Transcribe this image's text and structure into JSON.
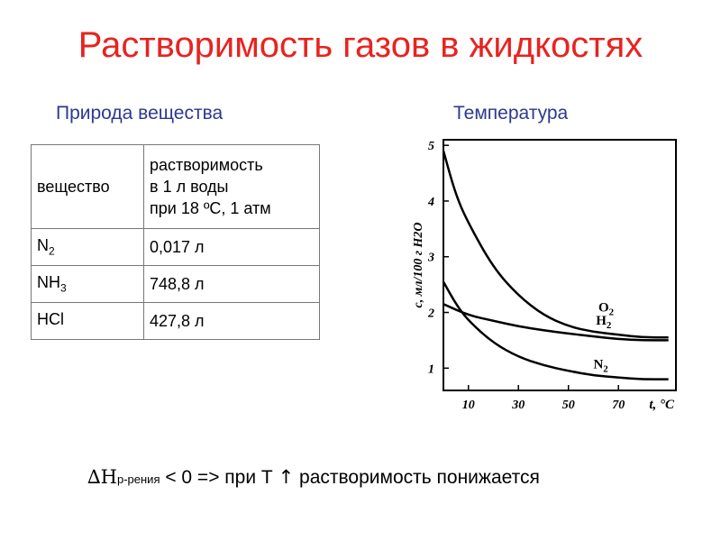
{
  "title": "Растворимость газов в жидкостях",
  "left_heading": "Природа вещества",
  "right_heading": "Температура",
  "table": {
    "header_substance": "вещество",
    "header_solubility_1": "растворимость",
    "header_solubility_2": "в 1 л воды",
    "header_solubility_3": "при 18 ºС, 1 атм",
    "rows": [
      {
        "base": "N",
        "sub": "2",
        "value": "0,017 л"
      },
      {
        "base": "NH",
        "sub": "3",
        "value": "748,8 л"
      },
      {
        "base": "HCl",
        "sub": "",
        "value": "427,8 л"
      }
    ]
  },
  "chart_data": {
    "type": "line",
    "ylabel": "c, мл/100 г H2O",
    "xlabel": "t, °C",
    "x_ticks": [
      "10",
      "30",
      "50",
      "70"
    ],
    "y_ticks": [
      "1",
      "2",
      "3",
      "4",
      "5"
    ],
    "xlim": [
      0,
      93
    ],
    "ylim": [
      0.6,
      5.1
    ],
    "grid": false,
    "series": [
      {
        "name": "O2",
        "x": [
          0,
          5,
          10,
          20,
          30,
          40,
          50,
          60,
          70,
          80,
          90
        ],
        "y": [
          4.9,
          4.1,
          3.6,
          2.8,
          2.3,
          1.95,
          1.75,
          1.65,
          1.6,
          1.55,
          1.55
        ]
      },
      {
        "name": "H2",
        "x": [
          0,
          10,
          20,
          30,
          40,
          50,
          60,
          70,
          80,
          90
        ],
        "y": [
          2.15,
          1.95,
          1.85,
          1.75,
          1.68,
          1.62,
          1.57,
          1.52,
          1.5,
          1.5
        ]
      },
      {
        "name": "N2",
        "x": [
          0,
          5,
          10,
          20,
          30,
          40,
          50,
          60,
          70,
          80,
          90
        ],
        "y": [
          2.55,
          2.15,
          1.85,
          1.45,
          1.2,
          1.05,
          0.95,
          0.87,
          0.83,
          0.8,
          0.8
        ]
      }
    ],
    "series_labels": [
      "O2",
      "H2",
      "N2"
    ]
  },
  "bottom": {
    "delta": "∆H",
    "sub": "р-рения",
    "rest_1": " < 0 => при Т ",
    "arrow": "↑",
    "rest_2": " растворимость понижается"
  }
}
